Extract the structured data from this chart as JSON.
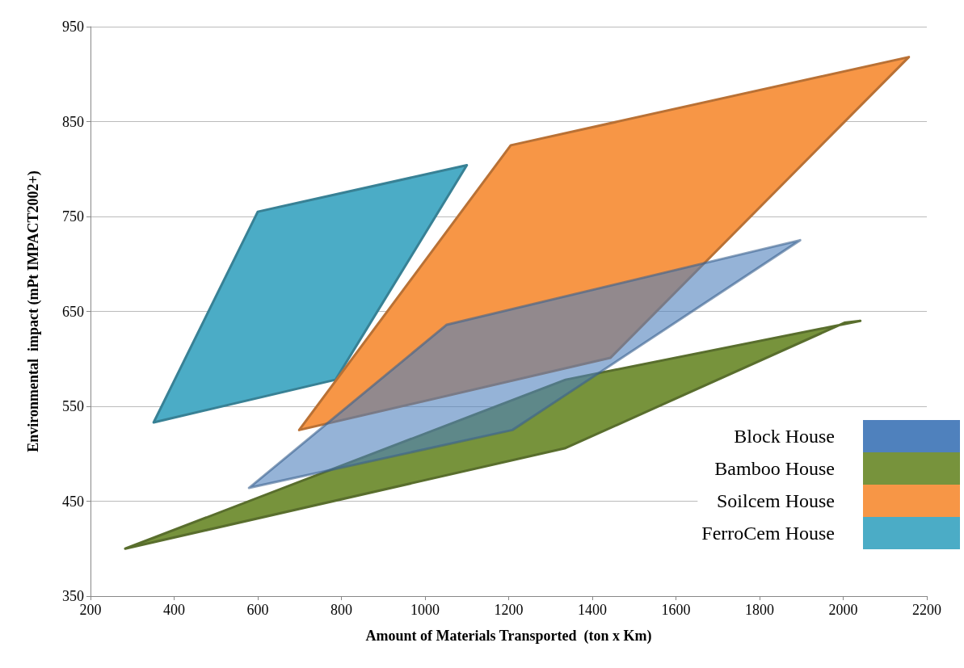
{
  "chart_data": {
    "type": "area",
    "xlabel": "Amount of Materials Transported  (ton x Km)",
    "ylabel": "Environmental  impact (mPt IMPACT2002+)",
    "xlim": [
      200,
      2200
    ],
    "xticks": [
      200,
      400,
      600,
      800,
      1000,
      1200,
      1400,
      1600,
      1800,
      2000,
      2200
    ],
    "ylim": [
      350,
      950
    ],
    "yticks": [
      350,
      450,
      550,
      650,
      750,
      850,
      950
    ],
    "grid": "y",
    "legend": "right",
    "series": [
      {
        "name": "FerroCem House",
        "color": "#4bacc6",
        "x": [
          351,
          600,
          1100,
          786
        ],
        "values": [
          533,
          755,
          804,
          578
        ]
      },
      {
        "name": "Soilcem House",
        "color": "#f79646",
        "x": [
          699,
          1205,
          2157,
          1443
        ],
        "values": [
          525,
          825,
          918,
          601
        ]
      },
      {
        "name": "Bamboo House",
        "color": "#77933c",
        "x": [
          283,
          1336,
          2041,
          2003,
          1336
        ],
        "values": [
          400,
          578,
          640,
          638,
          506
        ]
      },
      {
        "name": "Block House",
        "color": "#4f81bd",
        "x": [
          579,
          1052,
          1897,
          1209
        ],
        "values": [
          464,
          636,
          725,
          525
        ]
      }
    ]
  }
}
